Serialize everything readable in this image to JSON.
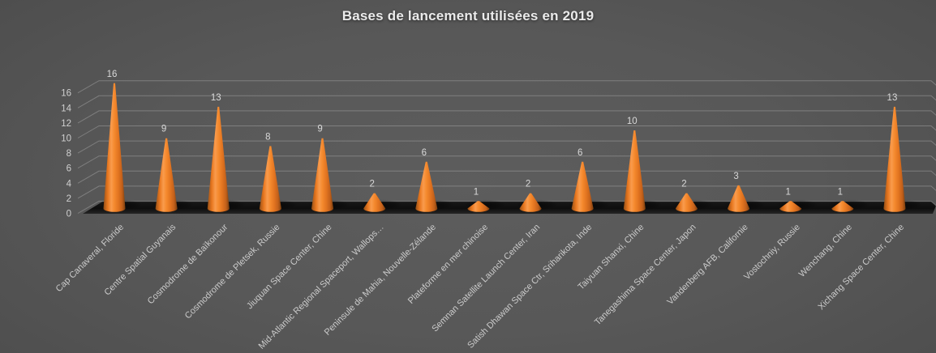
{
  "chart_data": {
    "type": "bar",
    "style": "3d-cone",
    "title": "Bases de lancement utilisées en 2019",
    "categories": [
      "Cap Canaveral, Floride",
      "Centre Spatial Guyanais",
      "Cosmodrome de Baïkonour",
      "Cosmodrome de Pletsek, Russie",
      "Jiuquan Space Center, Chine",
      "Mid-Atlantic Regional Spaceport, Wallops…",
      "Peninsule de Mahia, Nouvelle-Zélande",
      "Plateforme en mer chinoise",
      "Semnan Satellite Launch Center, Iran",
      "Satish Dhawan Space Ctr, Sriharikota, Inde",
      "Taiyuan Shanxi, Chine",
      "Tanegashima Space Center, Japon",
      "Vandenberg AFB, Californie",
      "Vostochniy, Russie",
      "Wenchang, Chine",
      "Xichang Space Center, Chine"
    ],
    "values": [
      16,
      9,
      13,
      8,
      9,
      2,
      6,
      1,
      2,
      6,
      10,
      2,
      3,
      1,
      1,
      13
    ],
    "xlabel": "",
    "ylabel": "",
    "ylim": [
      0,
      16
    ],
    "yticks": [
      0,
      2,
      4,
      6,
      8,
      10,
      12,
      14,
      16
    ],
    "grid": true,
    "legend": "none",
    "category_label_rotation_deg": 45,
    "colors": {
      "cone": "#ED7D31",
      "cone_highlight": "#F99B4D",
      "cone_shadow_edge": "#8C4A12",
      "title": "#EBEBEB",
      "tick_label": "#D0D0D0",
      "data_label": "#D9D9D9",
      "category_label": "#CBCBCB",
      "gridline": "#9A9A9A",
      "floor": "#141414",
      "background_center": "#5A5A5A",
      "background_edge": "#262626"
    }
  }
}
